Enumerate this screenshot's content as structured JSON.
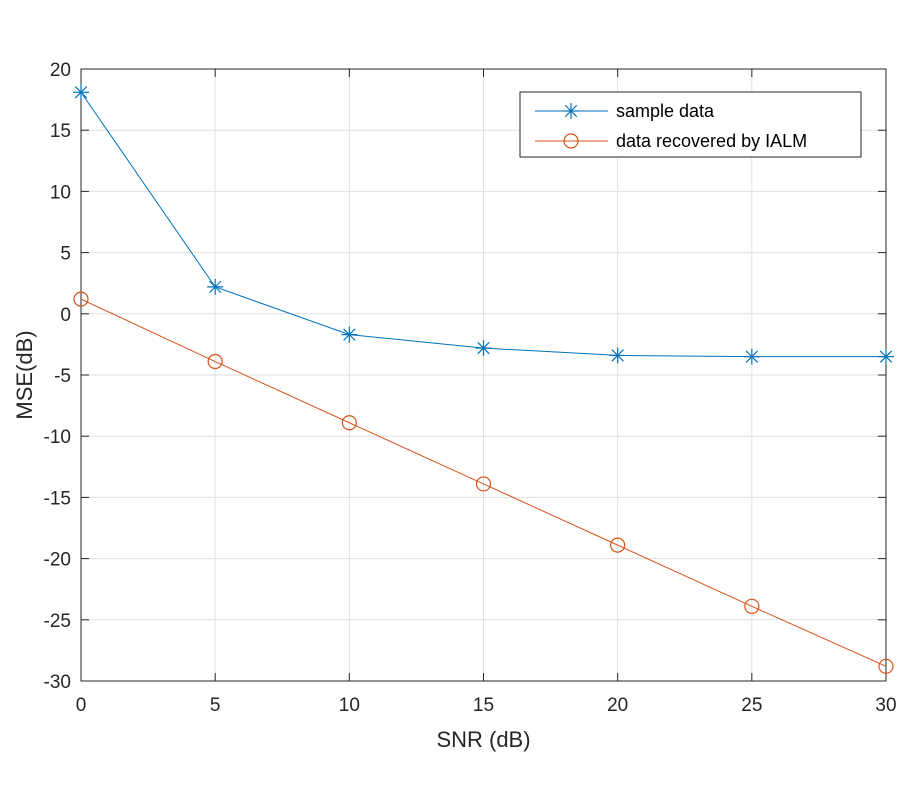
{
  "chart_data": {
    "type": "line",
    "title": "",
    "xlabel": "SNR (dB)",
    "ylabel": "MSE(dB)",
    "xlim": [
      0,
      30
    ],
    "ylim": [
      -30,
      20
    ],
    "xticks": [
      0,
      5,
      10,
      15,
      20,
      25,
      30
    ],
    "xtick_labels": [
      "0",
      "5",
      "10",
      "15",
      "20",
      "25",
      "30"
    ],
    "yticks": [
      20,
      15,
      10,
      5,
      0,
      -5,
      -10,
      -15,
      -20,
      -25,
      -30
    ],
    "ytick_labels": [
      "20",
      "15",
      "10",
      "5",
      "0",
      "-5",
      "-10",
      "-15",
      "-20",
      "-25",
      "-30"
    ],
    "grid": true,
    "legend_position": "top-right",
    "x": [
      0,
      5,
      10,
      15,
      20,
      25,
      30
    ],
    "series": [
      {
        "name": "sample data",
        "marker": "asterisk",
        "color": "#0072BD",
        "values": [
          18.1,
          2.2,
          -1.7,
          -2.8,
          -3.4,
          -3.5,
          -3.5
        ]
      },
      {
        "name": "data recovered by IALM",
        "marker": "circle",
        "color": "#D95319",
        "values": [
          1.2,
          -3.9,
          -8.9,
          -13.9,
          -18.9,
          -23.9,
          -28.8
        ]
      }
    ]
  }
}
